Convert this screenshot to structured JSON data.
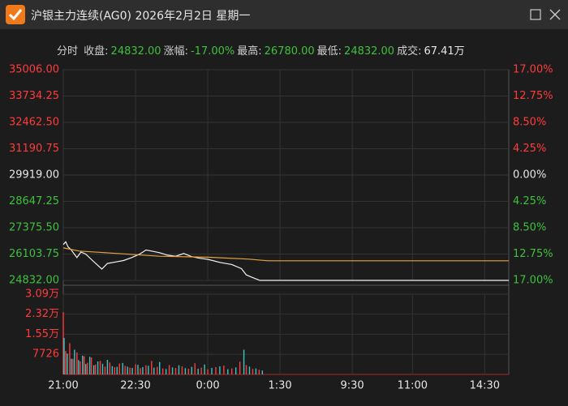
{
  "window": {
    "title": "沪银主力连续(AG0) 2026年2月2日 星期一"
  },
  "info": {
    "mode": "分时",
    "items": [
      {
        "label": "收盘:",
        "value": "24832.00",
        "color": "#3ec13e"
      },
      {
        "label": "涨幅:",
        "value": "-17.00%",
        "color": "#3ec13e"
      },
      {
        "label": "最高:",
        "value": "26780.00",
        "color": "#3ec13e"
      },
      {
        "label": "最低:",
        "value": "24832.00",
        "color": "#3ec13e"
      },
      {
        "label": "成交:",
        "value": "67.41万",
        "color": "#e6e6e6"
      }
    ]
  },
  "chart_data": [
    {
      "type": "line",
      "grid": true,
      "xlim": [
        0,
        555
      ],
      "xticks": [
        {
          "value": 0,
          "label": "21:00"
        },
        {
          "value": 90,
          "label": "22:30"
        },
        {
          "value": 180,
          "label": "0:00"
        },
        {
          "value": 270,
          "label": "1:30"
        },
        {
          "value": 360,
          "label": "9:30"
        },
        {
          "value": 435,
          "label": "11:00"
        },
        {
          "value": 525,
          "label": "14:30"
        }
      ],
      "ylim": [
        24832,
        35006
      ],
      "yticks": [
        {
          "value": 35006,
          "label": "35006.00"
        },
        {
          "value": 33734.25,
          "label": "33734.25"
        },
        {
          "value": 32462.5,
          "label": "32462.50"
        },
        {
          "value": 31190.75,
          "label": "31190.75"
        },
        {
          "value": 29919,
          "label": "29919.00"
        },
        {
          "value": 28647.25,
          "label": "28647.25"
        },
        {
          "value": 27375.5,
          "label": "27375.50"
        },
        {
          "value": 26103.75,
          "label": "26103.75"
        },
        {
          "value": 24832,
          "label": "24832.00"
        }
      ],
      "y2lim": [
        -17,
        17
      ],
      "y2ticks": [
        {
          "value": 17,
          "label": "17.00%"
        },
        {
          "value": 12.75,
          "label": "12.75%"
        },
        {
          "value": 8.5,
          "label": "8.50%"
        },
        {
          "value": 4.25,
          "label": "4.25%"
        },
        {
          "value": 0,
          "label": "0.00%"
        },
        {
          "value": -4.25,
          "label": "4.25%"
        },
        {
          "value": -8.5,
          "label": "8.50%"
        },
        {
          "value": -12.75,
          "label": "12.75%"
        },
        {
          "value": -17,
          "label": "17.00%"
        }
      ],
      "series": [
        {
          "color": "#f2f2f2",
          "x": [
            0,
            3,
            6,
            10,
            17,
            22,
            28,
            37,
            48,
            55,
            65,
            75,
            85,
            95,
            103,
            110,
            120,
            130,
            140,
            150,
            160,
            170,
            180,
            195,
            210,
            222,
            228,
            235,
            245,
            555
          ],
          "values": [
            26560,
            26700,
            26450,
            26300,
            25930,
            26200,
            26100,
            25770,
            25380,
            25650,
            25720,
            25790,
            25930,
            26100,
            26300,
            26250,
            26170,
            26050,
            26000,
            26130,
            25980,
            25900,
            25850,
            25700,
            25600,
            25400,
            25100,
            24980,
            24832,
            24832
          ]
        },
        {
          "color": "#e8a33a",
          "x": [
            0,
            20,
            60,
            120,
            180,
            230,
            255,
            555
          ],
          "values": [
            26400,
            26250,
            26150,
            26000,
            25950,
            25860,
            25780,
            25780
          ]
        }
      ]
    },
    {
      "type": "bar",
      "grid": true,
      "xlim": [
        0,
        555
      ],
      "ylim": [
        0,
        30900
      ],
      "yticks": [
        {
          "value": 30900,
          "label": "3.09万"
        },
        {
          "value": 23200,
          "label": "2.32万"
        },
        {
          "value": 15500,
          "label": "1.55万"
        },
        7726
      ],
      "series": [
        {
          "color": "#ff3b3b",
          "x": [
            0,
            3,
            8,
            12,
            17,
            21,
            26,
            30,
            35,
            40,
            46,
            52,
            58,
            64,
            70,
            77,
            83,
            90,
            96,
            103,
            110,
            117,
            124,
            132,
            140,
            148,
            156,
            164,
            172,
            180,
            190,
            200,
            210,
            220,
            228,
            236,
            244
          ],
          "values": [
            24000,
            9000,
            12000,
            6000,
            8500,
            5000,
            7000,
            4500,
            6500,
            3800,
            5200,
            3000,
            4600,
            2800,
            4200,
            3300,
            2600,
            3900,
            2400,
            3500,
            5200,
            2900,
            2300,
            3600,
            2500,
            3100,
            2200,
            4300,
            2600,
            2000,
            2800,
            3400,
            2300,
            4900,
            3600,
            2100,
            1800
          ]
        },
        {
          "color": "#3cc4c4",
          "x": [
            1,
            5,
            10,
            14,
            19,
            24,
            28,
            33,
            38,
            43,
            49,
            55,
            61,
            67,
            74,
            80,
            86,
            93,
            99,
            106,
            113,
            120,
            128,
            136,
            144,
            152,
            160,
            168,
            176,
            185,
            195,
            205,
            215,
            225,
            232,
            240,
            248
          ],
          "values": [
            14000,
            8000,
            6000,
            9500,
            5500,
            7200,
            4000,
            6800,
            3500,
            5000,
            4100,
            5600,
            3200,
            2900,
            4400,
            3000,
            2500,
            3700,
            2800,
            3300,
            2600,
            4800,
            2100,
            2700,
            3500,
            2400,
            2900,
            2200,
            3800,
            2500,
            3100,
            2000,
            2700,
            9500,
            3000,
            2300,
            1500
          ]
        }
      ]
    }
  ]
}
